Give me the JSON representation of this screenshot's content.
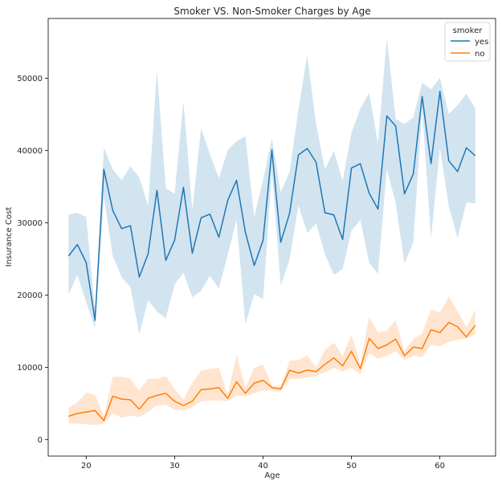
{
  "chart_data": {
    "type": "line",
    "title": "Smoker VS. Non-Smoker Charges by Age",
    "xlabel": "Age",
    "ylabel": "Insurance Cost",
    "xlim": [
      15.7,
      66.3
    ],
    "ylim": [
      -2300,
      58300
    ],
    "xticks": [
      20,
      30,
      40,
      50,
      60
    ],
    "yticks": [
      0,
      10000,
      20000,
      30000,
      40000,
      50000
    ],
    "grid": false,
    "legend": {
      "title": "smoker",
      "placement": "top-right"
    },
    "x": [
      18,
      19,
      20,
      21,
      22,
      23,
      24,
      25,
      26,
      27,
      28,
      29,
      30,
      31,
      32,
      33,
      34,
      35,
      36,
      37,
      38,
      39,
      40,
      41,
      42,
      43,
      44,
      45,
      46,
      47,
      48,
      49,
      50,
      51,
      52,
      53,
      54,
      55,
      56,
      57,
      58,
      59,
      60,
      61,
      62,
      63,
      64
    ],
    "series": [
      {
        "name": "yes",
        "color": "#1f77b4",
        "values": [
          25400,
          27000,
          24500,
          16500,
          37400,
          31700,
          29200,
          29600,
          22500,
          25700,
          34500,
          24800,
          27600,
          34900,
          25800,
          30700,
          31200,
          28000,
          33100,
          35900,
          28700,
          24100,
          27600,
          40100,
          27300,
          31300,
          39400,
          40300,
          38400,
          31400,
          31100,
          27700,
          37600,
          38200,
          34100,
          31900,
          44800,
          43400,
          34000,
          36800,
          47500,
          38200,
          48200,
          38600,
          37100,
          40400,
          39300
        ],
        "ci_low": [
          20100,
          22800,
          19000,
          15400,
          33500,
          25400,
          22500,
          21100,
          14600,
          19300,
          17700,
          16800,
          21500,
          23100,
          19700,
          20600,
          22700,
          20900,
          25600,
          30400,
          15900,
          20100,
          19400,
          37100,
          21300,
          24900,
          32400,
          28600,
          29900,
          25700,
          22800,
          23600,
          28900,
          30400,
          24500,
          22900,
          37500,
          32700,
          24400,
          27300,
          45800,
          27800,
          40400,
          32300,
          27900,
          32800,
          32700
        ],
        "ci_high": [
          31100,
          31400,
          30800,
          17800,
          40400,
          37400,
          35900,
          37800,
          36300,
          32400,
          51200,
          34800,
          34000,
          46800,
          31800,
          43100,
          39500,
          36200,
          40100,
          41300,
          42000,
          30800,
          35900,
          41700,
          34200,
          37100,
          45700,
          53200,
          43700,
          37400,
          40000,
          35800,
          42500,
          45800,
          48000,
          41000,
          55600,
          44400,
          43700,
          44600,
          49400,
          48500,
          50100,
          45100,
          46300,
          47900,
          45800
        ]
      },
      {
        "name": "no",
        "color": "#ff7f0e",
        "values": [
          3200,
          3600,
          3800,
          4000,
          2600,
          6000,
          5600,
          5500,
          4200,
          5700,
          6100,
          6400,
          5300,
          4700,
          5300,
          6900,
          7000,
          7200,
          5700,
          8000,
          6400,
          7800,
          8200,
          7200,
          7000,
          9600,
          9200,
          9600,
          9400,
          10400,
          11300,
          10200,
          12200,
          9800,
          14000,
          12600,
          13100,
          13900,
          11600,
          12800,
          12600,
          15200,
          14800,
          16200,
          15600,
          14200,
          15800
        ],
        "ci_low": [
          2200,
          2200,
          2100,
          2000,
          2200,
          3600,
          3000,
          3300,
          3100,
          3800,
          4700,
          4800,
          4100,
          4000,
          4500,
          5300,
          5400,
          5400,
          5300,
          6100,
          6000,
          6400,
          6800,
          6800,
          6600,
          8400,
          8400,
          8600,
          8800,
          9300,
          9900,
          9400,
          9900,
          9100,
          11900,
          11200,
          11600,
          12200,
          11000,
          11600,
          11400,
          13100,
          12900,
          13500,
          13800,
          14000,
          14600
        ],
        "ci_high": [
          4400,
          5100,
          6500,
          6200,
          3200,
          8700,
          8700,
          8400,
          6800,
          8400,
          8400,
          8800,
          7000,
          5500,
          7900,
          9500,
          9800,
          9900,
          6200,
          11700,
          7200,
          9900,
          10400,
          7500,
          7300,
          10900,
          11000,
          11600,
          10000,
          12400,
          13400,
          11600,
          14500,
          10500,
          17000,
          14800,
          15100,
          16500,
          12300,
          13900,
          14700,
          18000,
          17600,
          19800,
          17800,
          15500,
          18000
        ]
      }
    ]
  }
}
